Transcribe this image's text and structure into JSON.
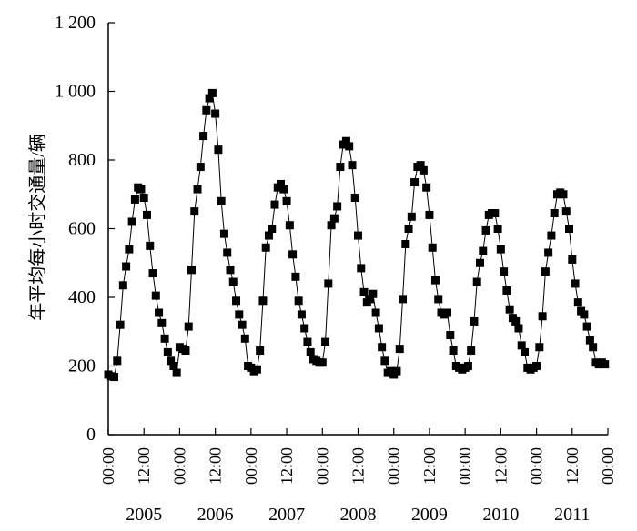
{
  "chart_data": {
    "type": "line",
    "ylabel": "年平均每小时交通量/辆",
    "xlabel": "",
    "title": "",
    "ylim": [
      0,
      1200
    ],
    "y_ticks": [
      "0",
      "200",
      "400",
      "600",
      "800",
      "1 000",
      "1 200"
    ],
    "y_tick_values": [
      0,
      200,
      400,
      600,
      800,
      1000,
      1200
    ],
    "x_tick_labels": [
      "00:00",
      "12:00",
      "00:00",
      "12:00",
      "00:00",
      "12:00",
      "00:00",
      "12:00",
      "00:00",
      "12:00",
      "00:00",
      "12:00",
      "00:00",
      "12:00",
      "00:00"
    ],
    "years": [
      "2005",
      "2006",
      "2007",
      "2008",
      "2009",
      "2010",
      "2011"
    ],
    "grid": false,
    "marker": "square",
    "series": [
      {
        "x_unit": "hours since 00:00 of the first day shown",
        "x": [
          0,
          1,
          2,
          3,
          4,
          5,
          6,
          7,
          8,
          9,
          10,
          11,
          12,
          13,
          14,
          15,
          16,
          17,
          18,
          19,
          20,
          21,
          22,
          23,
          24,
          25,
          26,
          27,
          28,
          29,
          30,
          31,
          32,
          33,
          34,
          35,
          36,
          37,
          38,
          39,
          40,
          41,
          42,
          43,
          44,
          45,
          46,
          47,
          48,
          49,
          50,
          51,
          52,
          53,
          54,
          55,
          56,
          57,
          58,
          59,
          60,
          61,
          62,
          63,
          64,
          65,
          66,
          67,
          68,
          69,
          70,
          71,
          72,
          73,
          74,
          75,
          76,
          77,
          78,
          79,
          80,
          81,
          82,
          83,
          84,
          85,
          86,
          87,
          88,
          89,
          90,
          91,
          92,
          93,
          94,
          95,
          96,
          97,
          98,
          99,
          100,
          101,
          102,
          103,
          104,
          105,
          106,
          107,
          108,
          109,
          110,
          111,
          112,
          113,
          114,
          115,
          116,
          117,
          118,
          119,
          120,
          121,
          122,
          123,
          124,
          125,
          126,
          127,
          128,
          129,
          130,
          131,
          132,
          133,
          134,
          135,
          136,
          137,
          138,
          139,
          140,
          141,
          142,
          143,
          144,
          145,
          146,
          147,
          148,
          149,
          150,
          151,
          152,
          153,
          154,
          155,
          156,
          157,
          158,
          159,
          160,
          161,
          162,
          163,
          164,
          165,
          166,
          167
        ],
        "values": [
          175,
          170,
          168,
          215,
          320,
          435,
          490,
          540,
          620,
          685,
          720,
          715,
          690,
          640,
          550,
          470,
          405,
          355,
          325,
          280,
          240,
          215,
          200,
          180,
          255,
          250,
          245,
          315,
          480,
          650,
          715,
          780,
          870,
          945,
          980,
          995,
          935,
          830,
          680,
          585,
          530,
          480,
          445,
          390,
          350,
          320,
          280,
          200,
          195,
          185,
          190,
          245,
          390,
          545,
          580,
          600,
          670,
          720,
          730,
          715,
          680,
          610,
          525,
          460,
          390,
          350,
          310,
          270,
          240,
          220,
          215,
          210,
          210,
          270,
          440,
          610,
          630,
          665,
          780,
          845,
          855,
          840,
          785,
          690,
          580,
          485,
          415,
          385,
          395,
          410,
          355,
          310,
          255,
          215,
          180,
          185,
          175,
          185,
          250,
          395,
          555,
          600,
          635,
          735,
          780,
          785,
          770,
          720,
          640,
          545,
          450,
          395,
          355,
          350,
          355,
          290,
          245,
          200,
          195,
          190,
          195,
          200,
          245,
          330,
          445,
          500,
          535,
          595,
          640,
          645,
          645,
          600,
          540,
          475,
          420,
          365,
          340,
          330,
          310,
          260,
          240,
          195,
          190,
          195,
          200,
          255,
          345,
          475,
          530,
          580,
          645,
          700,
          705,
          700,
          650,
          600,
          510,
          440,
          385,
          360,
          350,
          315,
          275,
          255,
          210,
          205,
          210,
          205
        ]
      }
    ]
  }
}
